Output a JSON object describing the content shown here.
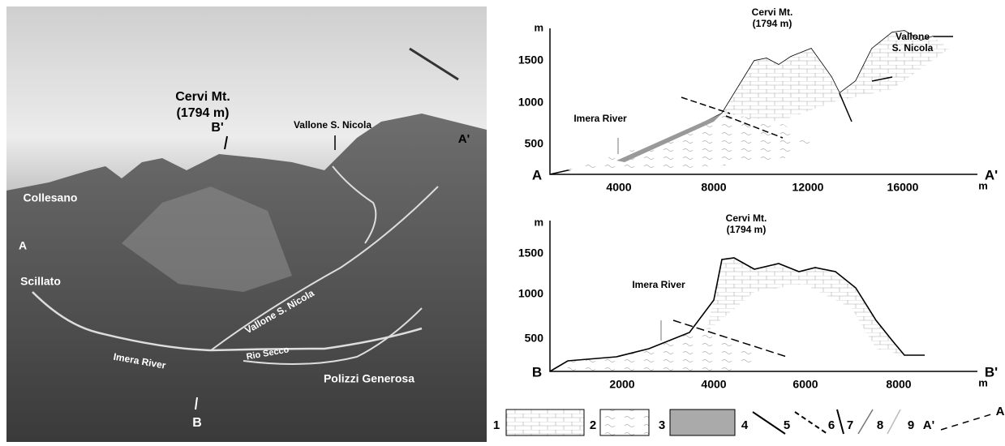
{
  "photo": {
    "labels": [
      "Cervi Mt.",
      "(1794 m)",
      "B'",
      "Vallone S. Nicola",
      "A'",
      "Collesano",
      "A",
      "Scillato",
      "Vallone S. Nicola",
      "Imera River",
      "Rio Secco",
      "Polizzi Generosa",
      "B"
    ]
  },
  "profile_a": {
    "y_unit": "m",
    "x_unit": "m",
    "yticks": [
      1500,
      1000,
      500
    ],
    "xticks": [
      4000,
      8000,
      12000,
      16000
    ],
    "labels": [
      "Cervi Mt.",
      "(1794 m)",
      "Vallone",
      "S. Nicola",
      "Imera River"
    ],
    "start": "A",
    "end": "A'"
  },
  "profile_b": {
    "y_unit": "m",
    "x_unit": "m",
    "yticks": [
      1500,
      1000,
      500
    ],
    "xticks": [
      2000,
      4000,
      6000,
      8000
    ],
    "labels": [
      "Cervi Mt.",
      "(1794 m)",
      "Imera River"
    ],
    "start": "B",
    "end": "B'"
  },
  "legend": [
    "1",
    "2",
    "3",
    "4",
    "5",
    "6",
    "7",
    "8",
    "9",
    "A'",
    "A"
  ]
}
